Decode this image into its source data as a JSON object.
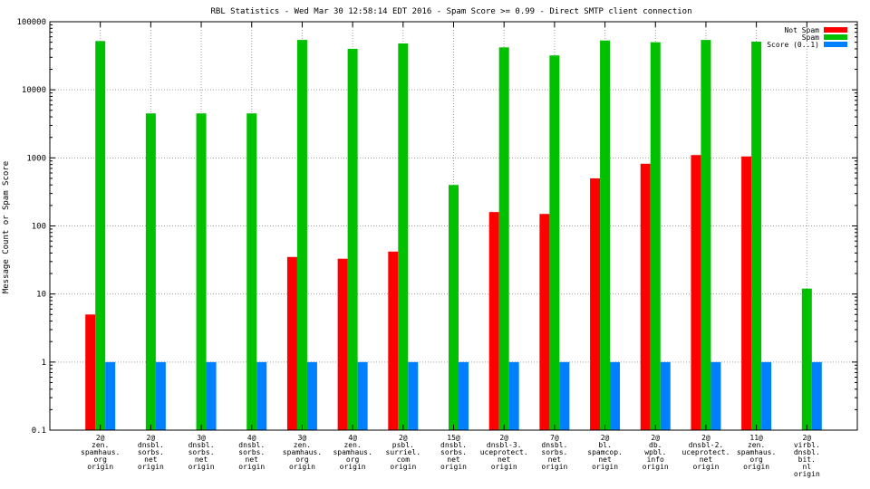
{
  "chart_data": {
    "type": "bar",
    "title": "RBL Statistics - Wed Mar 30 12:58:14 EDT 2016 - Spam Score >= 0.99 - Direct SMTP client connection",
    "xlabel": "",
    "ylabel": "Message Count or Spam Score",
    "yscale": "log",
    "ylim": [
      0.1,
      100000
    ],
    "yticks": [
      "0.1",
      "1",
      "10",
      "100",
      "1000",
      "10000",
      "100000"
    ],
    "grid": true,
    "legend_position": "top-right",
    "categories": [
      [
        "2@",
        "zen.",
        "spamhaus.",
        "org",
        "origin"
      ],
      [
        "2@",
        "dnsbl.",
        "sorbs.",
        "net",
        "origin"
      ],
      [
        "3@",
        "dnsbl.",
        "sorbs.",
        "net",
        "origin"
      ],
      [
        "4@",
        "dnsbl.",
        "sorbs.",
        "net",
        "origin"
      ],
      [
        "3@",
        "zen.",
        "spamhaus.",
        "org",
        "origin"
      ],
      [
        "4@",
        "zen.",
        "spamhaus.",
        "org",
        "origin"
      ],
      [
        "2@",
        "psbl.",
        "surriel.",
        "com",
        "origin"
      ],
      [
        "15@",
        "dnsbl.",
        "sorbs.",
        "net",
        "origin"
      ],
      [
        "2@",
        "dnsbl-3.",
        "uceprotect.",
        "net",
        "origin"
      ],
      [
        "7@",
        "dnsbl.",
        "sorbs.",
        "net",
        "origin"
      ],
      [
        "2@",
        "bl.",
        "spamcop.",
        "net",
        "origin"
      ],
      [
        "2@",
        "db.",
        "wpbl.",
        "info",
        "origin"
      ],
      [
        "2@",
        "dnsbl-2.",
        "uceprotect.",
        "net",
        "origin"
      ],
      [
        "11@",
        "zen.",
        "spamhaus.",
        "org",
        "origin"
      ],
      [
        "2@",
        "virbl.",
        "dnsbl.",
        "bit.",
        "nl",
        "origin"
      ]
    ],
    "series": [
      {
        "name": "Not Spam",
        "color": "#ff0000",
        "values": [
          5,
          null,
          null,
          null,
          35,
          33,
          42,
          null,
          160,
          150,
          500,
          820,
          1100,
          1050,
          null
        ]
      },
      {
        "name": "Spam",
        "color": "#00c000",
        "values": [
          52000,
          4500,
          4500,
          4500,
          54000,
          40000,
          48000,
          400,
          42000,
          32000,
          53000,
          50000,
          54000,
          51000,
          12
        ]
      },
      {
        "name": "Score (0..1)",
        "color": "#0080ff",
        "values": [
          1,
          1,
          1,
          1,
          1,
          1,
          1,
          1,
          1,
          1,
          1,
          1,
          1,
          1,
          1
        ]
      }
    ]
  }
}
